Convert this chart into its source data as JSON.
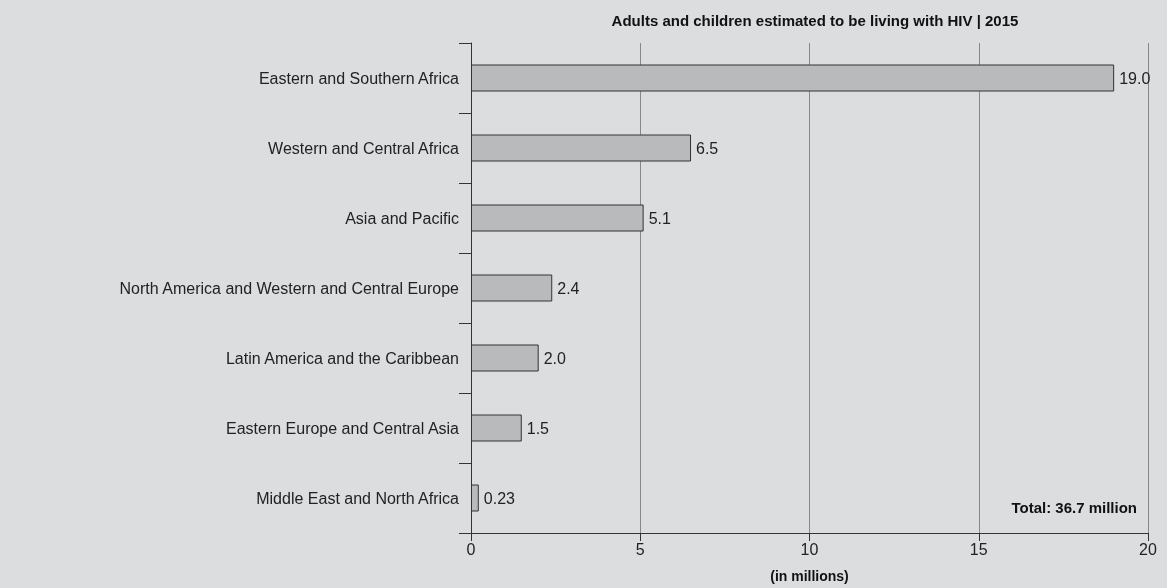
{
  "chart_data": {
    "type": "bar",
    "orientation": "horizontal",
    "title": "Adults and children estimated to be living with HIV | 2015",
    "xlabel": "(in millions)",
    "categories": [
      "Eastern and Southern Africa",
      "Western and Central Africa",
      "Asia and Pacific",
      "North America and Western and Central Europe",
      "Latin America and the Caribbean",
      "Eastern Europe and Central Asia",
      "Middle East and North Africa"
    ],
    "values": [
      19.0,
      6.5,
      5.1,
      2.4,
      2.0,
      1.5,
      0.23
    ],
    "value_labels": [
      "19.0",
      "6.5",
      "5.1",
      "2.4",
      "2.0",
      "1.5",
      "0.23"
    ],
    "color": "#b9babc",
    "xlim": [
      0,
      20
    ],
    "xticks": [
      0,
      5,
      10,
      15,
      20
    ],
    "grid": "x",
    "annotations": [
      "Total: 36.7 million"
    ]
  }
}
